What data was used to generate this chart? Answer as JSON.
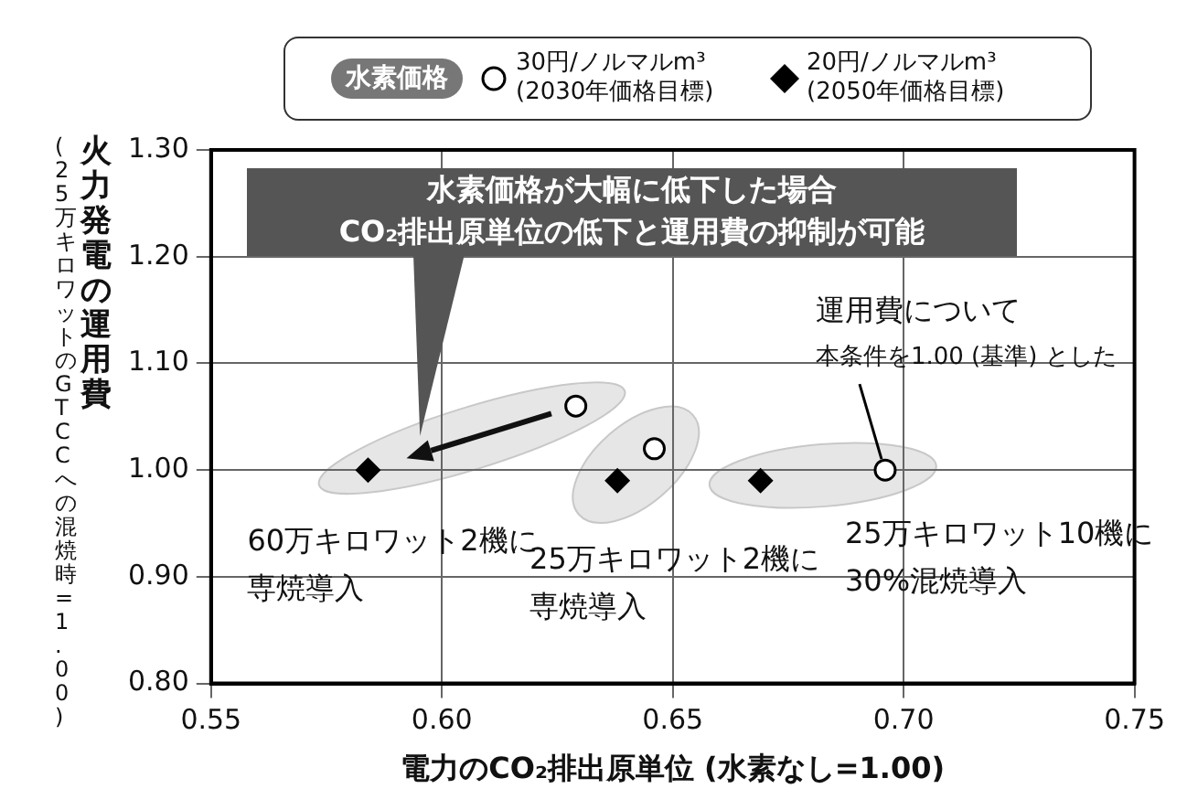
{
  "chart_data": {
    "type": "scatter",
    "xlabel": "電力のCO₂排出原単位 (水素なし=1.00)",
    "ylabel": "火力発電の運用費(25万キロワットのGTCCへの混焼時=1.00)",
    "legend_title": "水素価格",
    "xlim": [
      0.55,
      0.75
    ],
    "xticks": [
      0.55,
      {
        "value": 0.6,
        "label": "0.60"
      },
      0.65,
      {
        "value": 0.7,
        "label": "0.70"
      },
      0.75
    ],
    "ylim": [
      0.8,
      1.3
    ],
    "yticks": [
      {
        "value": 0.8,
        "label": "0.80"
      },
      {
        "value": 0.9,
        "label": "0.90"
      },
      {
        "value": 1.0,
        "label": "1.00"
      },
      {
        "value": 1.1,
        "label": "1.10"
      },
      {
        "value": 1.2,
        "label": "1.20"
      },
      {
        "value": 1.3,
        "label": "1.30"
      }
    ],
    "grid": true,
    "legend": "top",
    "series": [
      {
        "name": "30円/ノルマルm³ (2030年価格目標)",
        "color": "#000000",
        "marker": "circle",
        "x": [
          0.629,
          0.646,
          0.696
        ],
        "values": [
          1.06,
          1.02,
          1.0
        ]
      },
      {
        "name": "20円/ノルマルm³ (2050年価格目標)",
        "color": "#000000",
        "marker": "diamond",
        "x": [
          0.584,
          0.638,
          0.669
        ],
        "values": [
          1.0,
          0.99,
          0.99
        ]
      }
    ],
    "annotations": [
      "水素価格が大幅に低下した場合\nCO₂排出原単位の低下と運用費の抑制が可能",
      "運用費について",
      {
        "text": "本条件を1.00 (基準) とした",
        "x": 0.696,
        "y": 1.0
      },
      {
        "text": "60万キロワット2機に専焼導入",
        "x": 0.584,
        "y": 1.0
      },
      {
        "text": "25万キロワット2機に専焼導入",
        "x": 0.638,
        "y": 0.99
      },
      {
        "text": "25万キロワット10機に30%混焼導入",
        "x": 0.696,
        "y": 1.0
      }
    ]
  }
}
